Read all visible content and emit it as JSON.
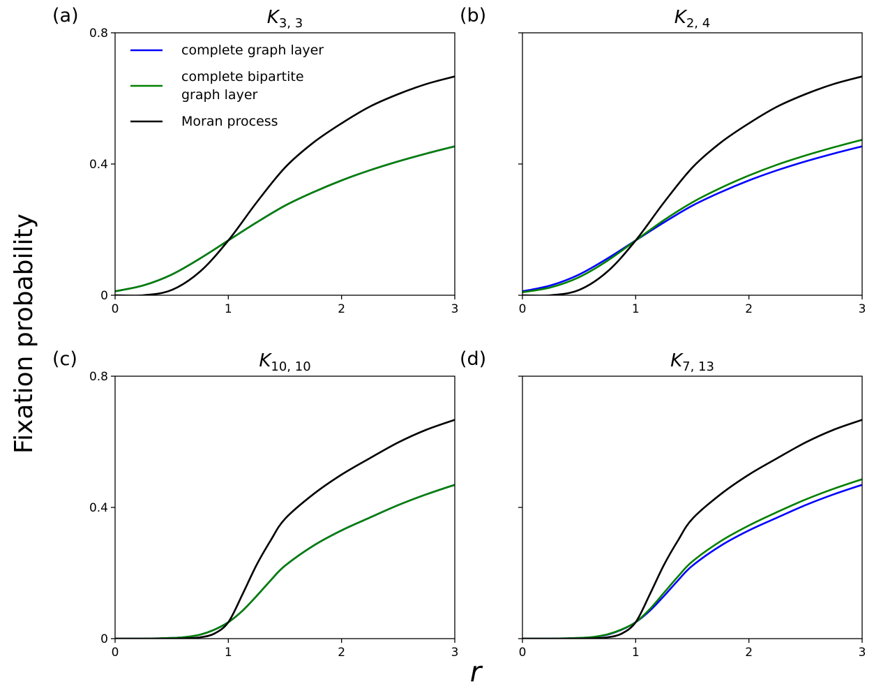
{
  "figure": {
    "ylabel": "Fixation probability",
    "xlabel": "r"
  },
  "legend": {
    "entries": [
      {
        "lines": [
          "complete graph layer"
        ],
        "color": "#0000ff"
      },
      {
        "lines": [
          "complete bipartite",
          "graph layer"
        ],
        "color": "#008000"
      },
      {
        "lines": [
          "Moran process"
        ],
        "color": "#000000"
      }
    ]
  },
  "chart_data": [
    {
      "type": "line",
      "panel": "(a)",
      "title_main": "K",
      "title_sub": "3, 3",
      "xlim": [
        0,
        3
      ],
      "ylim": [
        0,
        0.8
      ],
      "xticks": [
        "0",
        "1",
        "2",
        "3"
      ],
      "yticks": [
        "0",
        "0.4",
        "0.8"
      ],
      "show_ytick_labels": true,
      "x": [
        0,
        0.25,
        0.5,
        0.75,
        1.0,
        1.25,
        1.5,
        1.75,
        2.0,
        2.25,
        2.5,
        2.75,
        3.0
      ],
      "series": [
        {
          "key": "complete",
          "color": "#0000ff",
          "values": [
            0.012,
            0.03,
            0.063,
            0.112,
            0.167,
            0.222,
            0.273,
            0.314,
            0.35,
            0.381,
            0.408,
            0.432,
            0.454
          ]
        },
        {
          "key": "bipartite",
          "color": "#008000",
          "values": [
            0.012,
            0.03,
            0.063,
            0.112,
            0.167,
            0.222,
            0.273,
            0.314,
            0.35,
            0.381,
            0.408,
            0.432,
            0.454
          ]
        },
        {
          "key": "moran",
          "color": "#000000",
          "values": [
            0.0,
            0.0,
            0.016,
            0.072,
            0.167,
            0.283,
            0.389,
            0.465,
            0.524,
            0.575,
            0.613,
            0.644,
            0.667
          ]
        }
      ]
    },
    {
      "type": "line",
      "panel": "(b)",
      "title_main": "K",
      "title_sub": "2, 4",
      "xlim": [
        0,
        3
      ],
      "ylim": [
        0,
        0.8
      ],
      "xticks": [
        "0",
        "1",
        "2",
        "3"
      ],
      "yticks": [
        "0",
        "0.4",
        "0.8"
      ],
      "show_ytick_labels": false,
      "x": [
        0,
        0.25,
        0.5,
        0.75,
        1.0,
        1.25,
        1.5,
        1.75,
        2.0,
        2.25,
        2.5,
        2.75,
        3.0
      ],
      "series": [
        {
          "key": "complete",
          "color": "#0000ff",
          "values": [
            0.012,
            0.03,
            0.063,
            0.112,
            0.167,
            0.222,
            0.273,
            0.314,
            0.35,
            0.381,
            0.408,
            0.432,
            0.454
          ]
        },
        {
          "key": "bipartite",
          "color": "#008000",
          "values": [
            0.009,
            0.024,
            0.055,
            0.105,
            0.167,
            0.229,
            0.283,
            0.327,
            0.365,
            0.398,
            0.426,
            0.451,
            0.474
          ]
        },
        {
          "key": "moran",
          "color": "#000000",
          "values": [
            0.0,
            0.0,
            0.016,
            0.072,
            0.167,
            0.283,
            0.389,
            0.465,
            0.524,
            0.575,
            0.613,
            0.644,
            0.667
          ]
        }
      ]
    },
    {
      "type": "line",
      "panel": "(c)",
      "title_main": "K",
      "title_sub": "10, 10",
      "xlim": [
        0,
        3
      ],
      "ylim": [
        0,
        0.8
      ],
      "xticks": [
        "0",
        "1",
        "2",
        "3"
      ],
      "yticks": [
        "0",
        "0.4",
        "0.8"
      ],
      "show_ytick_labels": true,
      "x": [
        0,
        0.25,
        0.5,
        0.625,
        0.75,
        0.875,
        1.0,
        1.125,
        1.25,
        1.375,
        1.5,
        1.75,
        2.0,
        2.25,
        2.5,
        2.75,
        3.0
      ],
      "series": [
        {
          "key": "complete",
          "color": "#0000ff",
          "values": [
            0.0,
            0.0,
            0.002,
            0.005,
            0.012,
            0.027,
            0.05,
            0.085,
            0.13,
            0.178,
            0.222,
            0.283,
            0.33,
            0.369,
            0.407,
            0.44,
            0.469
          ]
        },
        {
          "key": "bipartite",
          "color": "#008000",
          "values": [
            0.0,
            0.0,
            0.002,
            0.005,
            0.012,
            0.027,
            0.05,
            0.085,
            0.13,
            0.178,
            0.222,
            0.283,
            0.33,
            0.369,
            0.407,
            0.44,
            0.469
          ]
        },
        {
          "key": "moran",
          "color": "#000000",
          "values": [
            0.0,
            0.0,
            0.0,
            0.001,
            0.004,
            0.015,
            0.05,
            0.135,
            0.225,
            0.3,
            0.365,
            0.44,
            0.5,
            0.55,
            0.598,
            0.637,
            0.667
          ]
        }
      ]
    },
    {
      "type": "line",
      "panel": "(d)",
      "title_main": "K",
      "title_sub": "7, 13",
      "xlim": [
        0,
        3
      ],
      "ylim": [
        0,
        0.8
      ],
      "xticks": [
        "0",
        "1",
        "2",
        "3"
      ],
      "yticks": [
        "0",
        "0.4",
        "0.8"
      ],
      "show_ytick_labels": false,
      "x": [
        0,
        0.25,
        0.5,
        0.625,
        0.75,
        0.875,
        1.0,
        1.125,
        1.25,
        1.375,
        1.5,
        1.75,
        2.0,
        2.25,
        2.5,
        2.75,
        3.0
      ],
      "series": [
        {
          "key": "complete",
          "color": "#0000ff",
          "values": [
            0.0,
            0.0,
            0.002,
            0.005,
            0.012,
            0.027,
            0.05,
            0.085,
            0.13,
            0.178,
            0.222,
            0.283,
            0.33,
            0.369,
            0.407,
            0.44,
            0.469
          ]
        },
        {
          "key": "bipartite",
          "color": "#008000",
          "values": [
            0.0,
            0.0,
            0.002,
            0.005,
            0.013,
            0.028,
            0.05,
            0.09,
            0.14,
            0.19,
            0.235,
            0.297,
            0.345,
            0.386,
            0.424,
            0.457,
            0.486
          ]
        },
        {
          "key": "moran",
          "color": "#000000",
          "values": [
            0.0,
            0.0,
            0.0,
            0.001,
            0.004,
            0.015,
            0.05,
            0.135,
            0.225,
            0.3,
            0.365,
            0.44,
            0.5,
            0.55,
            0.598,
            0.637,
            0.667
          ]
        }
      ]
    }
  ]
}
